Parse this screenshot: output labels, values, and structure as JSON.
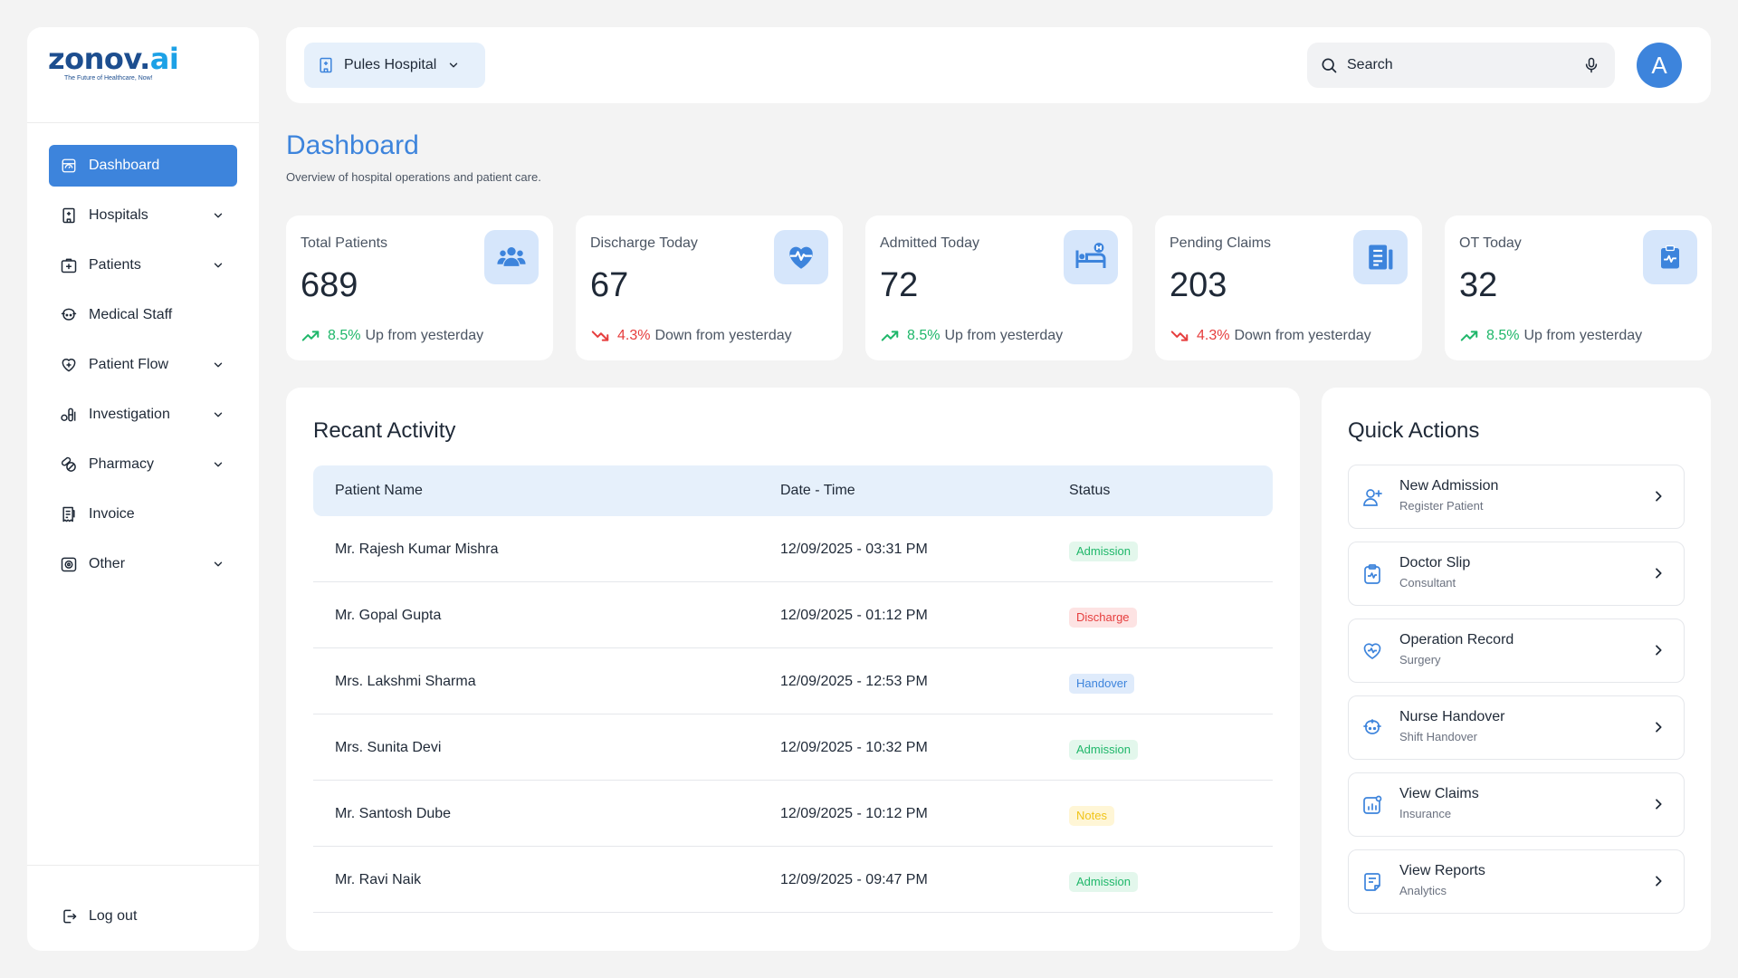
{
  "brand": {
    "name_main": "zonov.",
    "name_accent": "ai",
    "tagline": "The Future of Healthcare, Now!"
  },
  "colors": {
    "primary": "#3d84dc",
    "up": "#1fb76a",
    "down": "#e63d3d",
    "card_icon_bg": "#d6e6fb"
  },
  "sidebar": {
    "items": [
      {
        "label": "Dashboard",
        "icon": "dashboard-icon",
        "active": true,
        "has_chevron": false
      },
      {
        "label": "Hospitals",
        "icon": "hospital-icon",
        "has_chevron": true
      },
      {
        "label": "Patients",
        "icon": "patients-icon",
        "has_chevron": true
      },
      {
        "label": "Medical Staff",
        "icon": "medical-staff-icon",
        "has_chevron": false
      },
      {
        "label": "Patient Flow",
        "icon": "patient-flow-icon",
        "has_chevron": true
      },
      {
        "label": "Investigation",
        "icon": "investigation-icon",
        "has_chevron": true
      },
      {
        "label": "Pharmacy",
        "icon": "pharmacy-icon",
        "has_chevron": true
      },
      {
        "label": "Invoice",
        "icon": "invoice-icon",
        "has_chevron": false
      },
      {
        "label": "Other",
        "icon": "other-icon",
        "has_chevron": true
      }
    ],
    "logout_label": "Log out"
  },
  "header": {
    "hospital_selected": "Pules Hospital",
    "search_placeholder": "Search",
    "avatar_initial": "A"
  },
  "page": {
    "title": "Dashboard",
    "subtitle": "Overview of hospital operations and patient care."
  },
  "stats": [
    {
      "label": "Total Patients",
      "value": "689",
      "icon": "users-icon",
      "trend": "up",
      "pct": "8.5%",
      "trend_text": "Up from yesterday"
    },
    {
      "label": "Discharge Today",
      "value": "67",
      "icon": "heart-pulse-icon",
      "trend": "down",
      "pct": "4.3%",
      "trend_text": "Down from yesterday"
    },
    {
      "label": "Admitted Today",
      "value": "72",
      "icon": "hospital-bed-icon",
      "trend": "up",
      "pct": "8.5%",
      "trend_text": "Up from yesterday"
    },
    {
      "label": "Pending Claims",
      "value": "203",
      "icon": "claims-document-icon",
      "trend": "down",
      "pct": "4.3%",
      "trend_text": "Down from yesterday"
    },
    {
      "label": "OT Today",
      "value": "32",
      "icon": "clipboard-pulse-icon",
      "trend": "up",
      "pct": "8.5%",
      "trend_text": "Up from yesterday"
    }
  ],
  "activity": {
    "title": "Recant Activity",
    "columns": [
      "Patient Name",
      "Date - Time",
      "Status"
    ],
    "rows": [
      {
        "name": "Mr. Rajesh Kumar Mishra",
        "datetime": "12/09/2025 - 03:31 PM",
        "status": "Admission"
      },
      {
        "name": "Mr. Gopal Gupta",
        "datetime": "12/09/2025 - 01:12 PM",
        "status": "Discharge"
      },
      {
        "name": "Mrs. Lakshmi Sharma",
        "datetime": "12/09/2025 - 12:53 PM",
        "status": "Handover"
      },
      {
        "name": "Mrs. Sunita Devi",
        "datetime": "12/09/2025 - 10:32 PM",
        "status": "Admission"
      },
      {
        "name": "Mr. Santosh Dube",
        "datetime": "12/09/2025 - 10:12 PM",
        "status": "Notes"
      },
      {
        "name": "Mr. Ravi Naik",
        "datetime": "12/09/2025 - 09:47 PM",
        "status": "Admission"
      }
    ]
  },
  "quick_actions": {
    "title": "Quick Actions",
    "items": [
      {
        "title": "New Admission",
        "subtitle": "Register Patient",
        "icon": "add-user-icon"
      },
      {
        "title": "Doctor Slip",
        "subtitle": "Consultant",
        "icon": "clipboard-icon"
      },
      {
        "title": "Operation Record",
        "subtitle": "Surgery",
        "icon": "heart-icon"
      },
      {
        "title": "Nurse Handover",
        "subtitle": "Shift Handover",
        "icon": "nurse-icon"
      },
      {
        "title": "View Claims",
        "subtitle": "Insurance",
        "icon": "chart-doc-icon"
      },
      {
        "title": "View Reports",
        "subtitle": "Analytics",
        "icon": "report-icon"
      }
    ]
  }
}
